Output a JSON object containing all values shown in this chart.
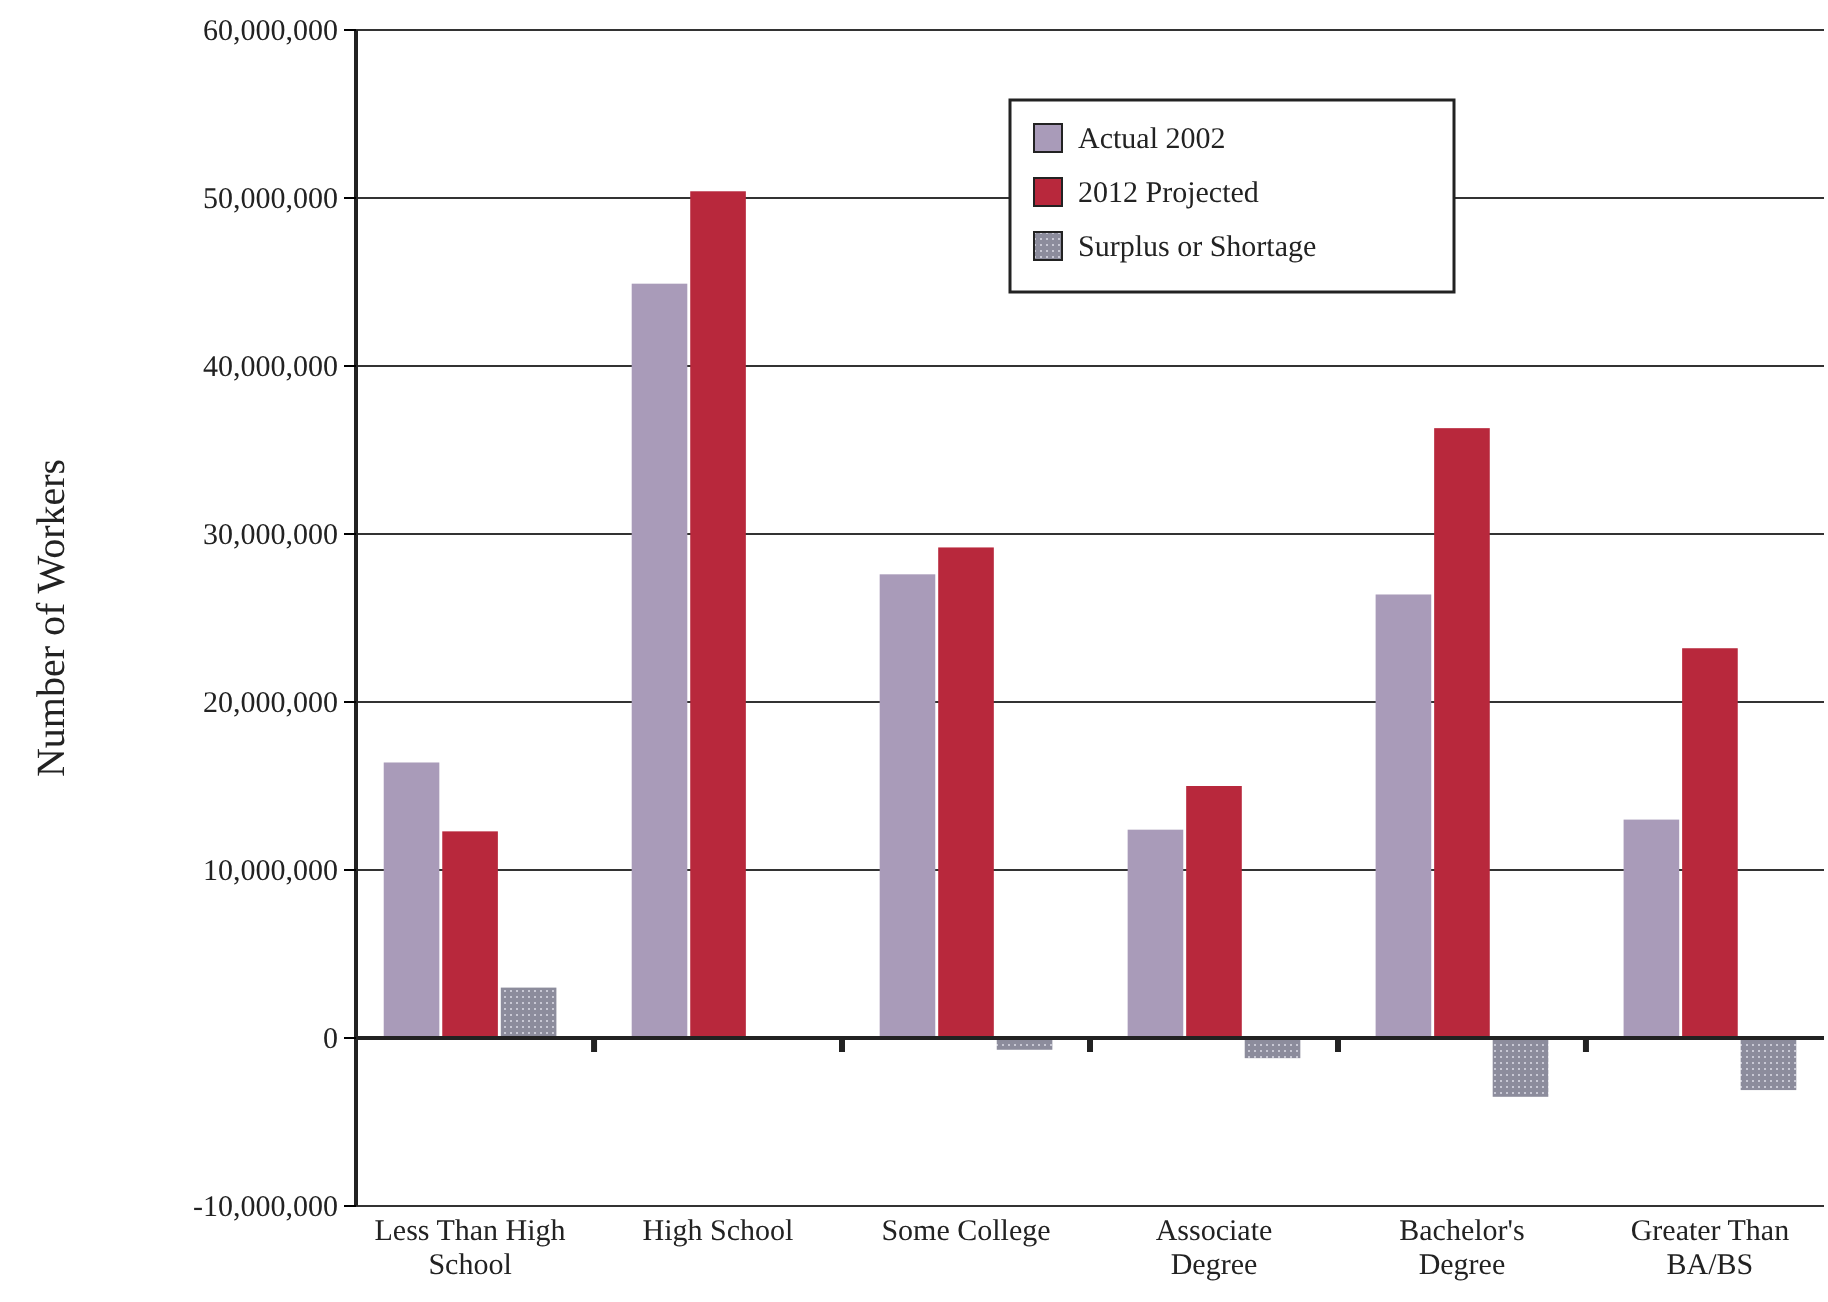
{
  "chart_data": {
    "type": "bar",
    "ylabel": "Number of Workers",
    "categories": [
      "Less Than High School",
      "High School",
      "Some College",
      "Associate Degree",
      "Bachelor's Degree",
      "Greater Than BA/BS"
    ],
    "series": [
      {
        "name": "Actual 2002",
        "color": "#a99bb9",
        "values": [
          16400000,
          44900000,
          27600000,
          12400000,
          26400000,
          13000000
        ]
      },
      {
        "name": "2012 Projected",
        "color": "#b8283c",
        "values": [
          12300000,
          50400000,
          29200000,
          15000000,
          36300000,
          23200000
        ]
      },
      {
        "name": "Surplus or Shortage",
        "color": "#8c8c9c",
        "values": [
          3000000,
          null,
          -700000,
          -1200000,
          -3500000,
          -3100000
        ]
      }
    ],
    "ylim": [
      -10000000,
      60000000
    ],
    "yticks": [
      {
        "value": -10000000,
        "label": "-10,000,000"
      },
      0,
      {
        "value": 10000000,
        "label": "10,000,000"
      },
      {
        "value": 20000000,
        "label": "20,000,000"
      },
      {
        "value": 30000000,
        "label": "30,000,000"
      },
      {
        "value": 40000000,
        "label": "40,000,000"
      },
      {
        "value": 50000000,
        "label": "50,000,000"
      },
      {
        "value": 60000000,
        "label": "60,000,000"
      }
    ],
    "grid": "y",
    "legend": "top right"
  }
}
